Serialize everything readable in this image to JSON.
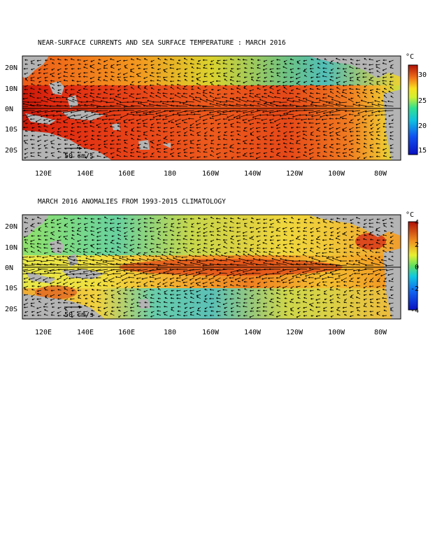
{
  "panels": [
    {
      "id": "sst",
      "title": "NEAR-SURFACE CURRENTS AND SEA SURFACE TEMPERATURE : MARCH 2016",
      "lat_ticks": [
        "20N",
        "10N",
        "0N",
        "10S",
        "20S"
      ],
      "lon_ticks": [
        "120E",
        "140E",
        "160E",
        "180",
        "160W",
        "140W",
        "120W",
        "100W",
        "80W"
      ],
      "scale_label": "50 cm/s",
      "colorbar": {
        "unit": "°C",
        "ticks": [
          "30",
          "25",
          "20",
          "15"
        ],
        "min": 14,
        "max": 32
      }
    },
    {
      "id": "anom",
      "title": "MARCH 2016 ANOMALIES FROM 1993-2015 CLIMATOLOGY",
      "lat_ticks": [
        "20N",
        "10N",
        "0N",
        "10S",
        "20S"
      ],
      "lon_ticks": [
        "120E",
        "140E",
        "160E",
        "180",
        "160W",
        "140W",
        "120W",
        "100W",
        "80W"
      ],
      "scale_label": "50 cm/s",
      "colorbar": {
        "unit": "°C",
        "ticks": [
          "4",
          "2",
          "0",
          "-2",
          "-4"
        ],
        "min": -4,
        "max": 4
      }
    }
  ],
  "colors": {
    "land": "#b4b4b4",
    "warm": "#d42010",
    "cool": "#20c0d0",
    "cold": "#1020d0"
  }
}
